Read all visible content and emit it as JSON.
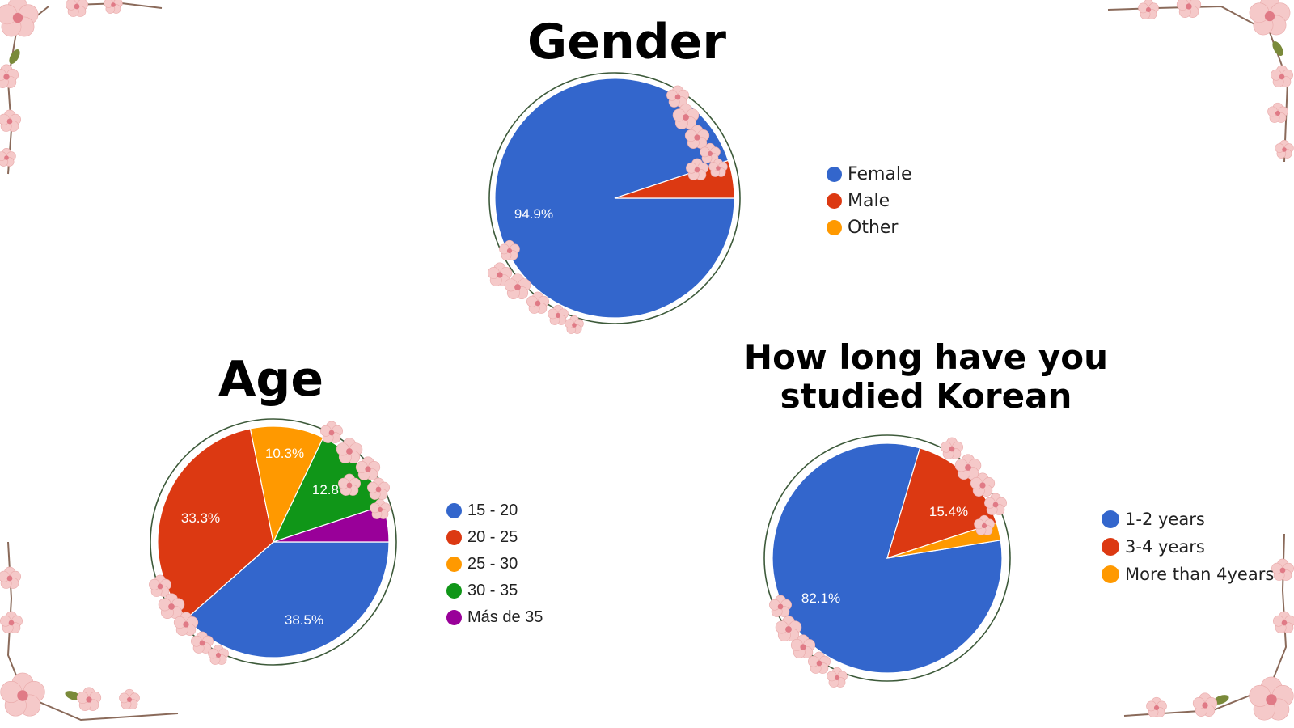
{
  "chart_data": [
    {
      "id": "gender",
      "type": "pie",
      "title": "Gender",
      "categories": [
        "Female",
        "Male",
        "Other"
      ],
      "values": [
        94.9,
        5.1,
        0.0
      ],
      "data_labels": [
        "94.9%",
        "",
        ""
      ],
      "colors": [
        "#3366cc",
        "#dc3912",
        "#ff9900"
      ],
      "legend": "right"
    },
    {
      "id": "age",
      "type": "pie",
      "title": "Age",
      "categories": [
        "15 - 20",
        "20 - 25",
        "25 - 30",
        "30 - 35",
        "Más de 35"
      ],
      "values": [
        38.5,
        33.3,
        10.3,
        12.8,
        5.1
      ],
      "data_labels": [
        "38.5%",
        "33.3%",
        "10.3%",
        "12.8%",
        ""
      ],
      "colors": [
        "#3366cc",
        "#dc3912",
        "#ff9900",
        "#109618",
        "#990099"
      ],
      "legend": "right"
    },
    {
      "id": "study",
      "type": "pie",
      "title": "How long have you studied Korean",
      "title_lines": [
        "How long have you",
        "studied Korean"
      ],
      "categories": [
        "1-2 years",
        "3-4 years",
        "More than 4years"
      ],
      "values": [
        82.1,
        15.4,
        2.5
      ],
      "data_labels": [
        "82.1%",
        "15.4%",
        ""
      ],
      "colors": [
        "#3366cc",
        "#dc3912",
        "#ff9900"
      ],
      "legend": "right"
    }
  ],
  "decorations": {
    "flower_color": "#f5c9c9",
    "flower_center_color": "#e07a86",
    "leaf_color": "#7a8a3a",
    "ring_color": "#3d5a3a"
  }
}
